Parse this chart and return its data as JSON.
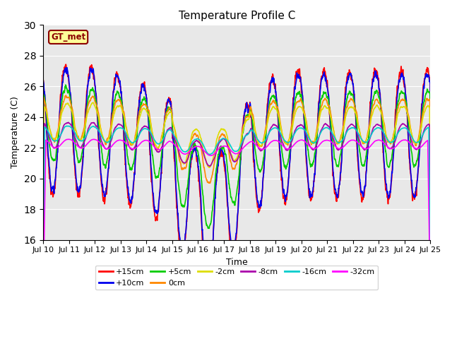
{
  "title": "Temperature Profile C",
  "xlabel": "Time",
  "ylabel": "Temperature (C)",
  "ylim": [
    16,
    30
  ],
  "xlim": [
    0,
    15
  ],
  "x_tick_labels": [
    "Jul 10",
    "Jul 11",
    "Jul 12",
    "Jul 13",
    "Jul 14",
    "Jul 15",
    "Jul 16",
    "Jul 17",
    "Jul 18",
    "Jul 19",
    "Jul 20",
    "Jul 21",
    "Jul 22",
    "Jul 23",
    "Jul 24",
    "Jul 25"
  ],
  "annotation_text": "GT_met",
  "annotation_bg": "#FFFF99",
  "annotation_border": "#8B0000",
  "plot_bg_color": "#E8E8E8",
  "fig_bg_color": "#FFFFFF",
  "grid_color": "#FFFFFF",
  "series_order": [
    "+15cm",
    "+10cm",
    "+5cm",
    "0cm",
    "-2cm",
    "-8cm",
    "-16cm",
    "-32cm"
  ],
  "series": {
    "+15cm": {
      "color": "#FF0000",
      "linewidth": 1.2
    },
    "+10cm": {
      "color": "#0000EE",
      "linewidth": 1.2
    },
    "+5cm": {
      "color": "#00CC00",
      "linewidth": 1.2
    },
    "0cm": {
      "color": "#FF8800",
      "linewidth": 1.2
    },
    "-2cm": {
      "color": "#DDDD00",
      "linewidth": 1.2
    },
    "-8cm": {
      "color": "#AA00AA",
      "linewidth": 1.2
    },
    "-16cm": {
      "color": "#00CCCC",
      "linewidth": 1.2
    },
    "-32cm": {
      "color": "#FF00FF",
      "linewidth": 1.2
    }
  },
  "legend_ncol": 6,
  "title_fontsize": 11,
  "axis_fontsize": 9,
  "tick_fontsize": 8
}
